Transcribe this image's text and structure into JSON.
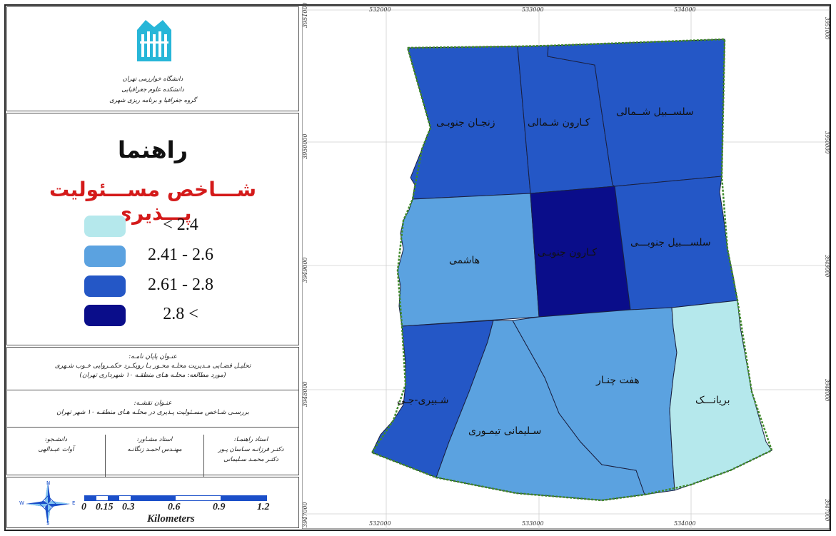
{
  "title_block": {
    "university": "دانشگاه خوارزمی تهران",
    "faculty": "دانشکده علوم جغرافیایی",
    "department": "گروه جغرافیا و برنامه ریزی شهری"
  },
  "legend": {
    "title": "راهنما",
    "subtitle": "شـــاخص مســـئولیت پـــذیری",
    "classes": [
      {
        "label": "< 2.4",
        "color": "#b5e8ec"
      },
      {
        "label": "2.41 - 2.6",
        "color": "#5ba2e0"
      },
      {
        "label": "2.61 - 2.8",
        "color": "#2457c6"
      },
      {
        "label": "2.8 <",
        "color": "#0a0d8a"
      }
    ]
  },
  "thesis": {
    "heading": "عنـوان پایان نامـه:",
    "line1": "تحلیـل فضـایی مـدیریت محلـه محـور بـا رویکـرد حکمـروایی خـوب شـهری",
    "line2": "(مورد مطالعه: محلـه هـای منطقـه ۱۰ شهرداری تهران)"
  },
  "map_title": {
    "heading": "عنـوان نقشـه:",
    "line1": "بررسـی شـاخص مسـئولیت پـذیری در محلـه هـای منطقـه ۱۰ شهر تهران"
  },
  "people": {
    "student_role": "دانشـجو:",
    "student_name": "آوات عبـدالهی",
    "advisor_role": "استاد مشـاور:",
    "advisor_name": "مهنـدس احمـد زنگانـه",
    "supervisor_role": "استاد راهنمـا:",
    "supervisor_1": "دکتـر فرزانـه سـاسان پـور",
    "supervisor_2": "دکتـر محمـد سـلیمانی"
  },
  "scale": {
    "ticks": [
      "0",
      "0.15",
      "0.3",
      "0.6",
      "0.9",
      "1.2"
    ],
    "unit": "Kilometers",
    "north_icon": "compass-rose-icon",
    "compass": {
      "n": "N",
      "s": "S",
      "e": "E",
      "w": "W"
    }
  },
  "grid": {
    "x_top": [
      "532000",
      "533000",
      "534000"
    ],
    "x_bottom": [
      "532000",
      "533000",
      "534000"
    ],
    "y_left": [
      "3951000",
      "3950000",
      "3949000",
      "3948000",
      "3947000"
    ],
    "y_right": [
      "3951000",
      "3950000",
      "3949000",
      "3948000",
      "3947000"
    ]
  },
  "neighborhoods": [
    {
      "name": "زنجـان جنوبـی",
      "class_index": 2
    },
    {
      "name": "کـارون شـمالی",
      "class_index": 2
    },
    {
      "name": "سلســبیل شــمالی",
      "class_index": 2
    },
    {
      "name": "هاشمی",
      "class_index": 1
    },
    {
      "name": "کـارون جنوبـی",
      "class_index": 3
    },
    {
      "name": "سلســـبیل جنوبـــی",
      "class_index": 2
    },
    {
      "name": "شـبیری-جـی",
      "class_index": 2
    },
    {
      "name": "سـلیمانی تیمـوری",
      "class_index": 1
    },
    {
      "name": "هفت چنـار",
      "class_index": 1
    },
    {
      "name": "بریانـــک",
      "class_index": 0
    }
  ]
}
